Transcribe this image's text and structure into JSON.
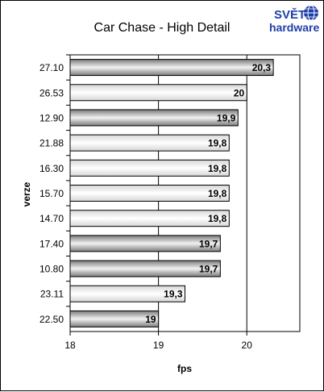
{
  "logo": {
    "line1": "SVĚT",
    "line2": "hardware",
    "color": "#1f3fa8"
  },
  "chart_data": {
    "type": "bar",
    "orientation": "horizontal",
    "title": "Car Chase - High Detail",
    "xlabel": "fps",
    "ylabel": "verze",
    "xlim": [
      18,
      20.6
    ],
    "x_ticks": [
      "18",
      "19",
      "20"
    ],
    "x_tick_values": [
      18,
      19,
      20
    ],
    "grid": true,
    "legend": "none",
    "categories": [
      "27.10",
      "26.53",
      "12.90",
      "21.88",
      "16.30",
      "15.70",
      "14.70",
      "17.40",
      "10.80",
      "23.11",
      "22.50"
    ],
    "values": [
      20.3,
      20.0,
      19.9,
      19.8,
      19.8,
      19.8,
      19.8,
      19.7,
      19.7,
      19.3,
      19.0
    ],
    "value_labels": [
      "20,3",
      "20",
      "19,9",
      "19,8",
      "19,8",
      "19,8",
      "19,8",
      "19,7",
      "19,7",
      "19,3",
      "19"
    ],
    "bar_styles": [
      "dark",
      "light",
      "dark",
      "light",
      "light",
      "light",
      "light",
      "dark",
      "dark",
      "light",
      "dark"
    ],
    "colors": {
      "dark_edge": "#7a7a7a",
      "dark_mid": "#f2f2f2",
      "light_edge": "#d6d6d6",
      "light_mid": "#ffffff",
      "plot_background": "#ffffff",
      "gridline": "#000000"
    }
  }
}
